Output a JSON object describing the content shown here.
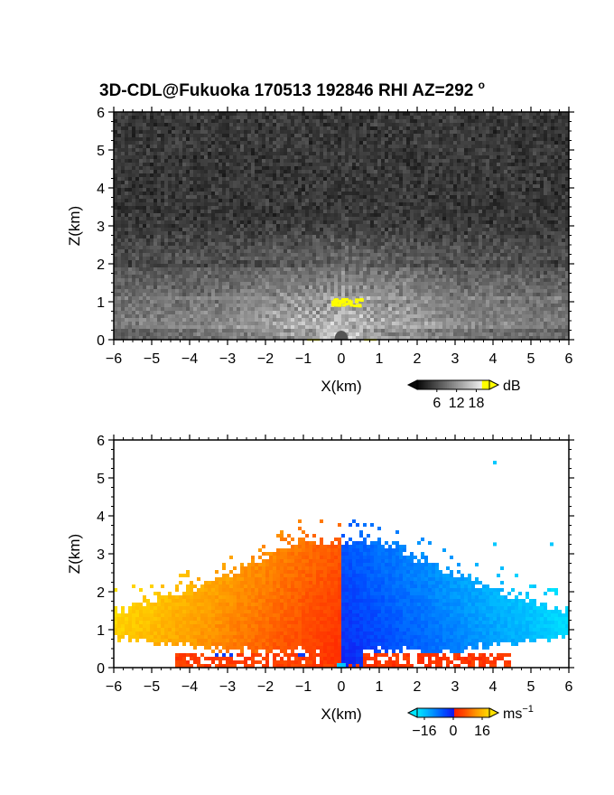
{
  "title_main": "3D-CDL@Fukuoka 170513 192846 RHI AZ=292",
  "title_sup": "o",
  "chart_data": [
    {
      "type": "heatmap",
      "variable": "backscatter intensity",
      "xlabel": "X(km)",
      "ylabel": "Z(km)",
      "xlim": [
        -6,
        6
      ],
      "ylim": [
        0,
        6
      ],
      "xticks": [
        "-6",
        "-5",
        "-4",
        "-3",
        "-2",
        "-1",
        "0",
        "1",
        "2",
        "3",
        "4",
        "5",
        "6"
      ],
      "yticks": [
        "0",
        "1",
        "2",
        "3",
        "4",
        "5",
        "6"
      ],
      "colorscale": "grayscale (black to white), yellow for highest values",
      "colorbar": {
        "unit": "dB",
        "ticks": [
          "6",
          "12",
          "18"
        ],
        "range": [
          0,
          22
        ]
      },
      "features": [
        {
          "label": "bright boundary layer",
          "z_range": [
            0,
            3
          ]
        },
        {
          "label": "yellow patch",
          "x_range": [
            -0.3,
            0.5
          ],
          "z_range": [
            0.9,
            1.1
          ]
        }
      ]
    },
    {
      "type": "heatmap",
      "variable": "Doppler velocity",
      "xlabel": "X(km)",
      "ylabel": "Z(km)",
      "xlim": [
        -6,
        6
      ],
      "ylim": [
        0,
        6
      ],
      "xticks": [
        "-6",
        "-5",
        "-4",
        "-3",
        "-2",
        "-1",
        "0",
        "1",
        "2",
        "3",
        "4",
        "5",
        "6"
      ],
      "yticks": [
        "0",
        "1",
        "2",
        "3",
        "4",
        "5",
        "6"
      ],
      "colorscale": "diverging: cyan/blue (negative) to red/orange/yellow (positive)",
      "colorbar": {
        "unit": "ms",
        "unit_sup": "−1",
        "ticks": [
          "−16",
          "0",
          "16"
        ],
        "range": [
          -20,
          20
        ]
      },
      "features": [
        {
          "label": "positive velocity region (red-orange-yellow)",
          "x_range": [
            -6,
            0
          ],
          "z_range": [
            0,
            3.4
          ]
        },
        {
          "label": "negative velocity region (blue-cyan)",
          "x_range": [
            0,
            6
          ],
          "z_range": [
            0,
            3.4
          ]
        }
      ]
    }
  ],
  "colors": {
    "yellow": "#ffff00",
    "red": "#ff2200",
    "orange": "#ff8a00",
    "blue": "#0038ff",
    "cyan": "#00c8ff"
  }
}
